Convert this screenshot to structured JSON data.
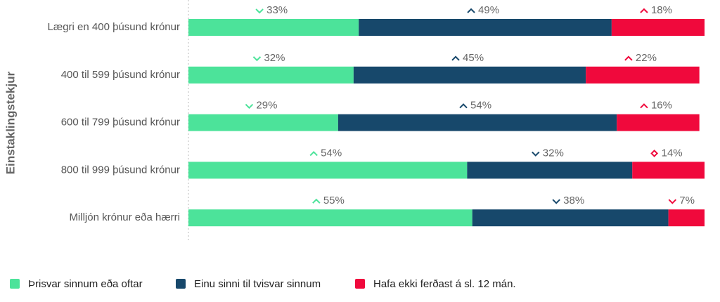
{
  "chart_data": {
    "type": "stacked_bar_horizontal",
    "y_label": "Einstaklingstekjur",
    "categories": [
      "Lægri en 400 þúsund krónur",
      "400 til 599 þúsund krónur",
      "600 til 799 þúsund krónur",
      "800 til 999 þúsund krónur",
      "Milljón krónur eða hærri"
    ],
    "xlim": [
      0,
      100
    ],
    "series": [
      {
        "name": "Þrisvar sinnum eða oftar",
        "color": "#4ce39a",
        "values": [
          33,
          32,
          29,
          54,
          55
        ],
        "value_labels": [
          "33%",
          "32%",
          "29%",
          "54%",
          "55%"
        ],
        "markers": [
          "down",
          "down",
          "down",
          "up",
          "up"
        ]
      },
      {
        "name": "Einu sinni til tvisvar sinnum",
        "color": "#17486b",
        "values": [
          49,
          45,
          54,
          32,
          38
        ],
        "value_labels": [
          "49%",
          "45%",
          "54%",
          "32%",
          "38%"
        ],
        "markers": [
          "up",
          "up",
          "up",
          "down",
          "down"
        ]
      },
      {
        "name": "Hafa ekki ferðast á sl. 12 mán.",
        "color": "#f0093c",
        "values": [
          18,
          22,
          16,
          14,
          7
        ],
        "value_labels": [
          "18%",
          "22%",
          "16%",
          "14%",
          "7%"
        ],
        "markers": [
          "up",
          "up",
          "up",
          "both",
          "down"
        ]
      }
    ],
    "legend": "bottom-left"
  }
}
